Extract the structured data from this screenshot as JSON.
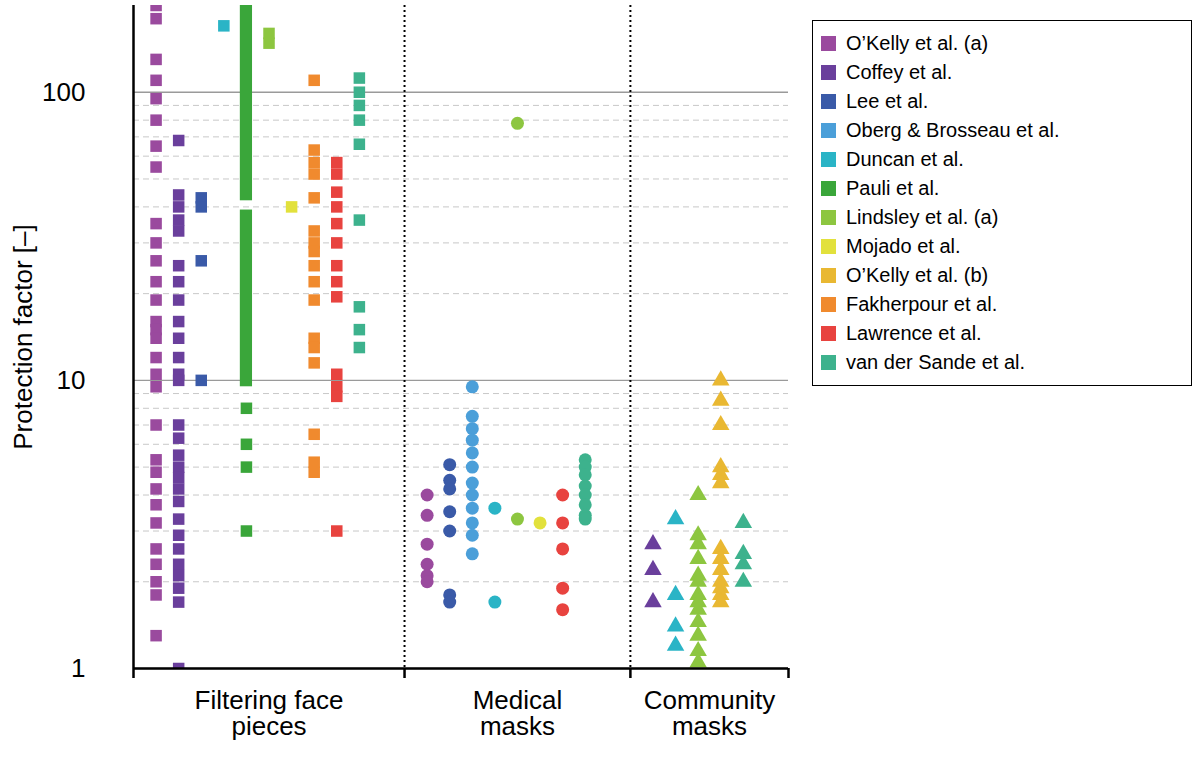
{
  "chart_data": {
    "type": "scatter",
    "y_label": "Protection factor [–]",
    "categories": [
      "Filtering face pieces",
      "Medical masks",
      "Community masks"
    ],
    "marker": [
      "square",
      "circle",
      "triangle"
    ],
    "log": "y",
    "grid": true,
    "legend": "right",
    "ylim": [
      1,
      200
    ],
    "yticks": [
      1,
      10,
      100
    ],
    "series": [
      {
        "name": "O’Kelly et al. (a)",
        "color": "#9a4a9e",
        "values": [
          [
            200,
            180,
            130,
            110,
            95,
            80,
            65,
            55,
            35,
            30,
            26,
            22,
            19,
            16,
            15,
            14,
            12,
            10.5,
            9.5,
            7,
            5.3,
            4.8,
            4.2,
            3.7,
            3.2,
            2.6,
            2.3,
            2.0,
            1.8,
            1.3
          ],
          [
            4.0,
            3.4,
            2.7,
            2.3,
            2.1,
            2.0
          ],
          []
        ]
      },
      {
        "name": "Coffey et al.",
        "color": "#6a3f9c",
        "values": [
          [
            68,
            44,
            40,
            36,
            33,
            25,
            22,
            19,
            16,
            14,
            12,
            10.5,
            10,
            7,
            6.3,
            5.5,
            5,
            4.6,
            4.2,
            3.8,
            3.3,
            2.9,
            2.6,
            2.3,
            2.1,
            1.9,
            1.7,
            1.0
          ],
          [],
          [
            2.7,
            2.2,
            1.7
          ]
        ]
      },
      {
        "name": "Lee et al.",
        "color": "#3a5aa8",
        "values": [
          [
            43,
            40,
            26,
            10
          ],
          [
            5.1,
            4.5,
            4.2,
            3.5,
            3.0,
            1.8,
            1.7
          ],
          []
        ]
      },
      {
        "name": "Oberg & Brosseau et al.",
        "color": "#4b9fd9",
        "values": [
          [],
          [
            9.5,
            7.5,
            6.8,
            6.2,
            5.6,
            5.0,
            4.4,
            4.0,
            3.6,
            3.2,
            2.9,
            2.5
          ],
          []
        ]
      },
      {
        "name": "Duncan et al.",
        "color": "#2ab4c6",
        "values": [
          [
            170
          ],
          [
            3.6,
            1.7
          ],
          [
            3.3,
            1.8,
            1.4,
            1.2
          ]
        ]
      },
      {
        "name": "Pauli et al.",
        "color": "#3aa63a",
        "values": [
          [
            8,
            6,
            5,
            3
          ],
          [],
          []
        ],
        "ranges": [
          [
            [
              9.5,
              39
            ],
            [
              42,
              200
            ]
          ],
          [],
          []
        ]
      },
      {
        "name": "Lindsley et al. (a)",
        "color": "#8dc640",
        "values": [
          [
            160,
            148
          ],
          [
            78,
            3.3
          ],
          [
            4.0,
            2.9,
            2.7,
            2.4,
            2.1,
            2.0,
            1.8,
            1.7,
            1.6,
            1.45,
            1.3,
            1.15,
            1.05
          ]
        ]
      },
      {
        "name": "Mojado et al.",
        "color": "#e2e13c",
        "values": [
          [
            40
          ],
          [
            3.2
          ],
          []
        ]
      },
      {
        "name": "O’Kelly et al. (b)",
        "color": "#e9b832",
        "values": [
          [],
          [],
          [
            10,
            8.5,
            7,
            5,
            4.7,
            4.4,
            2.6,
            2.4,
            2.2,
            2.0,
            1.9,
            1.8,
            1.7
          ]
        ]
      },
      {
        "name": "Fakherpour et al.",
        "color": "#f08a2e",
        "values": [
          [
            110,
            63,
            57,
            52,
            43,
            33,
            30,
            28,
            25,
            22,
            19,
            14,
            13,
            11.5,
            6.5,
            5.2,
            4.8
          ],
          [],
          []
        ]
      },
      {
        "name": "Lawrence et al.",
        "color": "#e8433f",
        "values": [
          [
            57,
            52,
            45,
            40,
            35,
            30,
            25,
            22,
            19.5,
            10.5,
            9.5,
            8.8,
            3
          ],
          [
            4.0,
            3.2,
            2.6,
            1.9,
            1.6
          ],
          []
        ]
      },
      {
        "name": "van der Sande et al.",
        "color": "#3db28d",
        "values": [
          [
            112,
            100,
            90,
            80,
            66,
            36,
            18,
            15,
            13
          ],
          [
            5.3,
            5.0,
            4.7,
            4.3,
            4.0,
            3.7,
            3.4,
            3.3
          ],
          [
            3.2,
            2.5,
            2.3,
            2.0
          ]
        ]
      }
    ]
  }
}
